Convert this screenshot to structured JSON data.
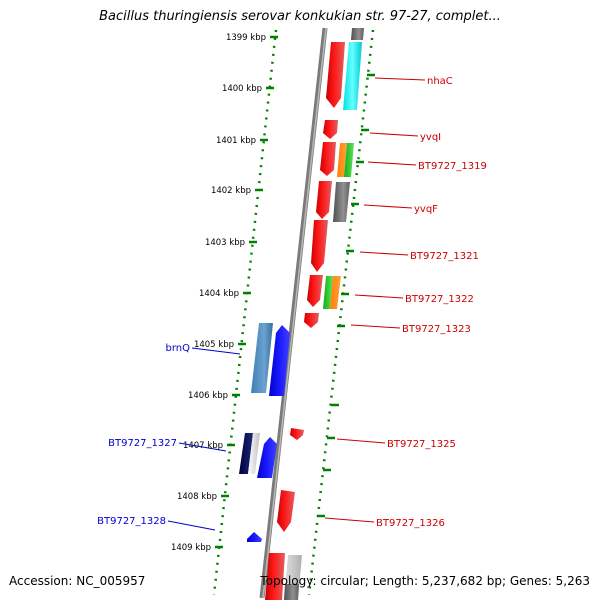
{
  "title": "Bacillus thuringiensis serovar konkukian str. 97-27, complet...",
  "ticks": [
    "1399 kbp",
    "1400 kbp",
    "1401 kbp",
    "1402 kbp",
    "1403 kbp",
    "1404 kbp",
    "1405 kbp",
    "1406 kbp",
    "1407 kbp",
    "1408 kbp",
    "1409 kbp"
  ],
  "genes_right": [
    "nhaC",
    "yvqI",
    "BT9727_1319",
    "yvqF",
    "BT9727_1321",
    "BT9727_1322",
    "BT9727_1323",
    "BT9727_1325",
    "BT9727_1326"
  ],
  "genes_left": [
    "brnQ",
    "BT9727_1327",
    "BT9727_1328"
  ],
  "footer": {
    "accession": "Accession: NC_005957",
    "topology": "Topology: circular; Length: 5,237,682 bp; Genes: 5,263"
  },
  "colors": {
    "forward_strand": "#ff0000",
    "reverse_strand": "#0000ff",
    "dotted_guide": "#008000"
  }
}
